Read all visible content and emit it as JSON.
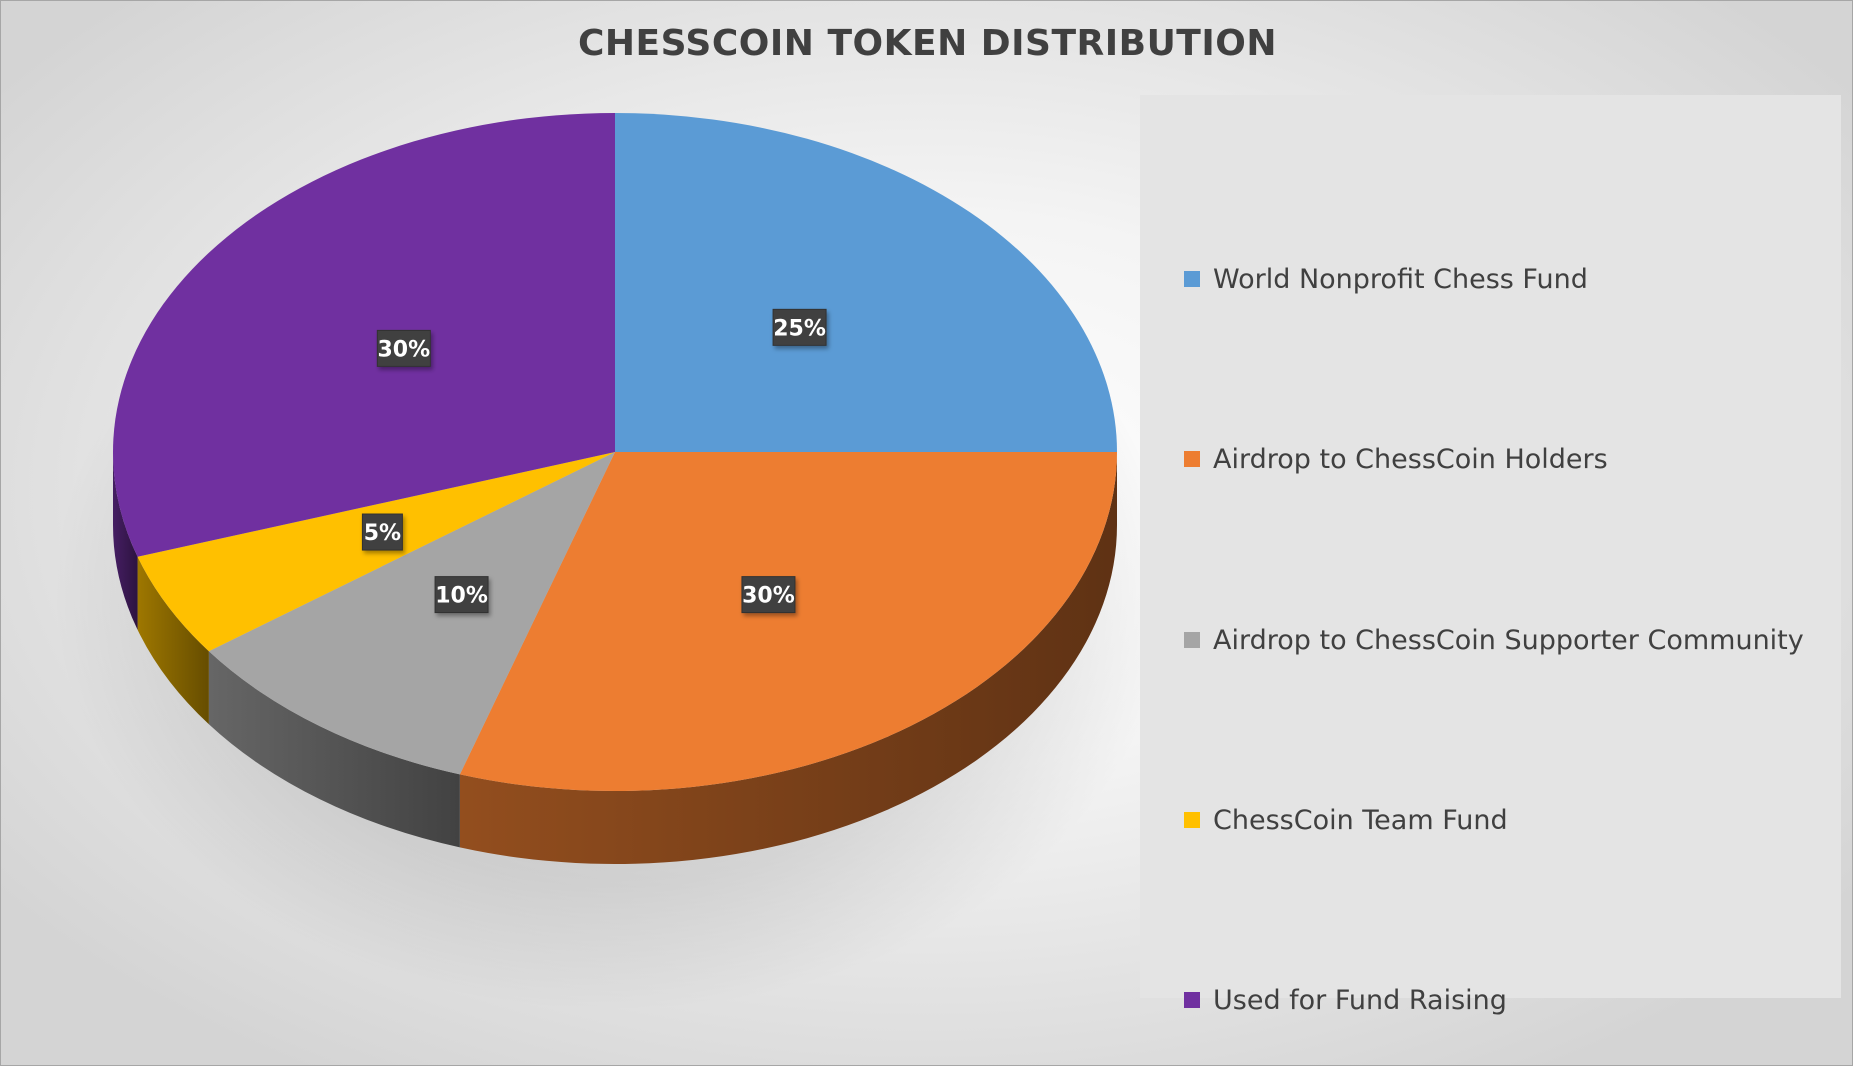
{
  "chart_data": {
    "type": "pie",
    "title": "CHESSCOIN TOKEN DISTRIBUTION",
    "style": "3d",
    "start_angle": "12 o'clock, clockwise",
    "legend_position": "right",
    "labels": [
      "World Nonprofit Chess Fund",
      "Airdrop to ChessCoin Holders",
      "Airdrop to ChessCoin Supporter Community",
      "ChessCoin Team Fund",
      "Used for Fund Raising"
    ],
    "values": [
      25,
      30,
      10,
      5,
      30
    ],
    "data_labels": [
      "25%",
      "30%",
      "10%",
      "5%",
      "30%"
    ],
    "colors": [
      "#5b9bd5",
      "#ed7d31",
      "#a5a5a5",
      "#ffc000",
      "#7030a0"
    ]
  }
}
